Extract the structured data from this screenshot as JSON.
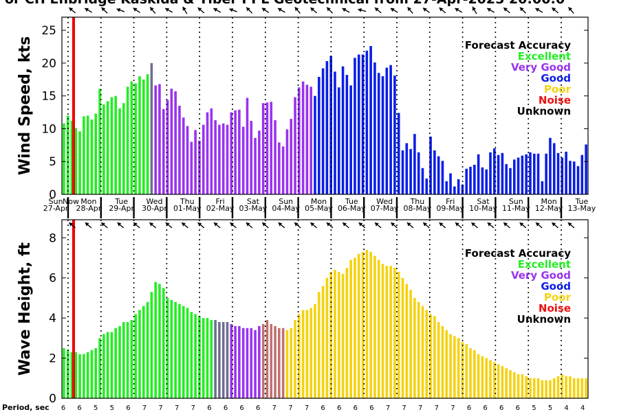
{
  "title": "or CH Enbridge  Kaskida & Tiber PPL Geotechnical from 27-Apr-2025 20:00:0",
  "colors": {
    "Excellent": "#22ee22",
    "Very Good": "#9933ee",
    "Good": "#0a1ee6",
    "Poor": "#f5d20f",
    "Noise": "#ee1111",
    "Unknown": "#000000",
    "Transition": "#6e6e92",
    "TransitionWarm": "#c07070",
    "now_line": "#ee0000"
  },
  "legend_title": "Forecast Accuracy",
  "legend_items": [
    "Excellent",
    "Very Good",
    "Good",
    "Poor",
    "Noise",
    "Unknown"
  ],
  "legend_placement": "top-right",
  "days": [
    {
      "dow": "Sun",
      "date": "27-Apr",
      "marker": "Now"
    },
    {
      "dow": "Mon",
      "date": "28-Apr",
      "marker": ""
    },
    {
      "dow": "Tue",
      "date": "29-Apr",
      "marker": ""
    },
    {
      "dow": "Wed",
      "date": "30-Apr",
      "marker": ""
    },
    {
      "dow": "Thu",
      "date": "01-May",
      "marker": ""
    },
    {
      "dow": "Fri",
      "date": "02-May",
      "marker": ""
    },
    {
      "dow": "Sat",
      "date": "03-May",
      "marker": ""
    },
    {
      "dow": "Sun",
      "date": "04-May",
      "marker": ""
    },
    {
      "dow": "Mon",
      "date": "05-May",
      "marker": ""
    },
    {
      "dow": "Tue",
      "date": "06-May",
      "marker": ""
    },
    {
      "dow": "Wed",
      "date": "07-May",
      "marker": ""
    },
    {
      "dow": "Thu",
      "date": "08-May",
      "marker": ""
    },
    {
      "dow": "Fri",
      "date": "09-May",
      "marker": ""
    },
    {
      "dow": "Sat",
      "date": "10-May",
      "marker": ""
    },
    {
      "dow": "Sun",
      "date": "11-May",
      "marker": ""
    },
    {
      "dow": "Mon",
      "date": "12-May",
      "marker": ""
    },
    {
      "dow": "Tue",
      "date": "13-May",
      "marker": ""
    }
  ],
  "period_label": "Period, sec",
  "period_values": [
    6,
    6,
    5,
    5,
    6,
    7,
    7,
    7,
    7,
    6,
    6,
    6,
    6,
    7,
    7,
    7,
    6,
    6,
    6,
    6,
    7,
    7,
    7,
    7,
    7,
    6,
    6,
    6,
    6,
    5,
    5,
    4,
    4,
    3,
    4,
    5
  ],
  "chart_data": [
    {
      "type": "bar",
      "ylabel": "Wind Speed, kts",
      "ylim": [
        0,
        27
      ],
      "yticks": [
        0,
        5,
        10,
        15,
        20,
        25
      ],
      "grid": false,
      "bar_step_hours": 3,
      "start": "27-Apr 21:00",
      "values": [
        10.8,
        12.0,
        11.2,
        10.1,
        9.6,
        11.9,
        12.0,
        11.4,
        12.3,
        16.1,
        13.7,
        14.2,
        14.8,
        15.0,
        13.1,
        13.9,
        16.4,
        17.2,
        16.9,
        18.0,
        17.5,
        18.3,
        20.0,
        16.6,
        16.8,
        13.0,
        14.4,
        16.1,
        15.7,
        13.5,
        11.7,
        10.4,
        8.0,
        9.8,
        8.2,
        10.6,
        12.5,
        13.1,
        11.3,
        10.6,
        10.8,
        10.6,
        12.5,
        12.8,
        12.9,
        10.3,
        14.7,
        11.2,
        8.6,
        9.7,
        13.9,
        14.0,
        14.1,
        11.3,
        7.9,
        7.3,
        9.9,
        11.5,
        14.8,
        16.3,
        17.2,
        16.7,
        16.4,
        15.0,
        17.9,
        19.2,
        20.3,
        21.1,
        18.7,
        16.3,
        19.5,
        18.2,
        16.6,
        20.8,
        21.3,
        21.3,
        21.9,
        22.6,
        20.1,
        18.5,
        18.0,
        19.3,
        19.7,
        18.1,
        12.4,
        6.7,
        7.8,
        6.9,
        9.2,
        6.4,
        4.0,
        2.4,
        8.8,
        6.7,
        5.8,
        5.1,
        2.0,
        3.2,
        1.2,
        2.3,
        1.5,
        3.9,
        4.2,
        4.5,
        6.1,
        4.1,
        3.8,
        6.4,
        7.0,
        6.0,
        6.3,
        4.6,
        4.0,
        5.3,
        5.6,
        5.9,
        6.1,
        6.4,
        6.2,
        6.2,
        2.0,
        6.2,
        8.6,
        7.8,
        6.3,
        5.6,
        6.5,
        5.1,
        5.0,
        4.3,
        6.0,
        7.6
      ]
    },
    {
      "type": "bar",
      "ylabel": "Wave Height, ft",
      "ylim": [
        0,
        8.9
      ],
      "yticks": [
        0,
        2,
        4,
        6,
        8
      ],
      "grid": false,
      "bar_step_hours": 3,
      "start": "27-Apr 21:00",
      "values": [
        2.5,
        2.4,
        2.3,
        2.3,
        2.2,
        2.2,
        2.3,
        2.4,
        2.5,
        3.0,
        3.2,
        3.3,
        3.3,
        3.5,
        3.6,
        3.8,
        3.8,
        3.9,
        4.2,
        4.4,
        4.6,
        4.8,
        5.3,
        5.8,
        5.7,
        5.5,
        5.0,
        4.9,
        4.8,
        4.7,
        4.6,
        4.5,
        4.3,
        4.2,
        4.1,
        4.0,
        4.0,
        3.9,
        3.9,
        3.8,
        3.8,
        3.8,
        3.7,
        3.6,
        3.6,
        3.5,
        3.5,
        3.5,
        3.4,
        3.6,
        3.7,
        3.9,
        3.7,
        3.6,
        3.5,
        3.5,
        3.4,
        3.5,
        3.9,
        4.2,
        4.4,
        4.4,
        4.5,
        4.7,
        5.3,
        5.6,
        6.0,
        6.3,
        6.4,
        6.3,
        6.2,
        6.5,
        6.9,
        7.0,
        7.2,
        7.3,
        7.4,
        7.3,
        7.1,
        6.9,
        6.7,
        6.6,
        6.6,
        6.5,
        6.3,
        6.0,
        5.7,
        5.4,
        5.0,
        4.8,
        4.6,
        4.4,
        4.2,
        4.1,
        3.8,
        3.6,
        3.4,
        3.2,
        3.1,
        3.0,
        2.8,
        2.7,
        2.5,
        2.4,
        2.2,
        2.1,
        2.0,
        1.9,
        1.8,
        1.7,
        1.6,
        1.5,
        1.4,
        1.3,
        1.2,
        1.2,
        1.1,
        1.0,
        1.0,
        1.0,
        0.9,
        0.9,
        0.9,
        1.0,
        1.1,
        1.2,
        1.1,
        1.1,
        1.0,
        1.0,
        1.0,
        1.0
      ]
    }
  ]
}
